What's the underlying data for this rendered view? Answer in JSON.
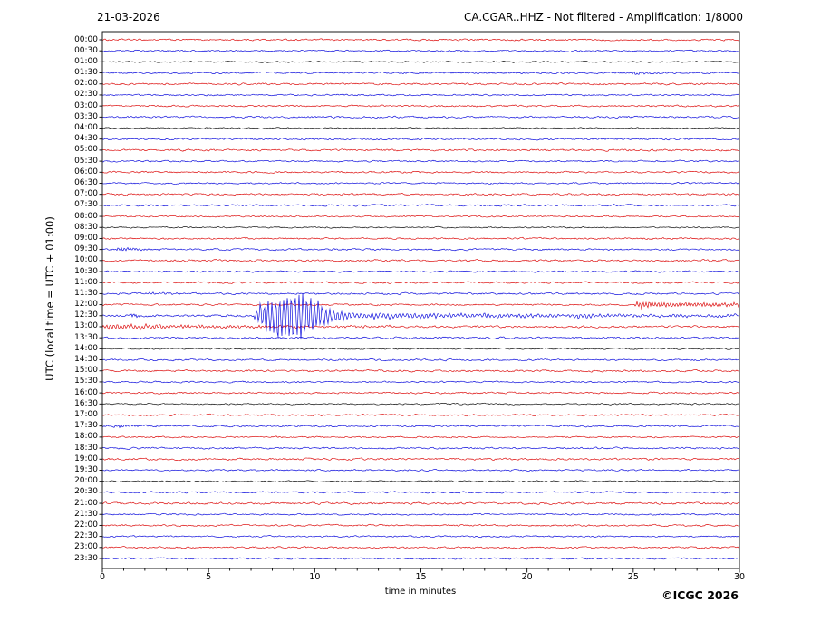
{
  "header": {
    "date": "21-03-2026",
    "station_title": "CA.CGAR..HHZ - Not filtered - Amplification: 1/8000"
  },
  "axes": {
    "y_label": "UTC (local time = UTC + 01:00)",
    "x_label": "time in minutes",
    "x_ticks": [
      0,
      5,
      10,
      15,
      20,
      25,
      30
    ],
    "x_minor_step": 1,
    "x_range": [
      0,
      30
    ]
  },
  "footer": {
    "copyright": "©ICGC 2026"
  },
  "colors": {
    "red": "#dd1111",
    "blue": "#1111dd",
    "black": "#111111"
  },
  "chart_data": {
    "type": "line",
    "subtype": "helicorder-seismogram",
    "title": "CA.CGAR..HHZ - Not filtered - Amplification: 1/8000",
    "date": "21-03-2026",
    "xlabel": "time in minutes",
    "ylabel": "UTC (local time = UTC + 01:00)",
    "x_range_minutes": [
      0,
      30
    ],
    "minutes_per_line": 30,
    "rows": [
      {
        "label": "00:00",
        "color": "red",
        "noise_amp": 1.0,
        "events": []
      },
      {
        "label": "00:30",
        "color": "blue",
        "noise_amp": 0.9,
        "events": []
      },
      {
        "label": "01:00",
        "color": "black",
        "noise_amp": 0.8,
        "events": []
      },
      {
        "label": "01:30",
        "color": "blue",
        "noise_amp": 1.0,
        "events": [
          {
            "start": 24.8,
            "peak_at": 25.0,
            "end": 27.0,
            "peak_amp": 2.2,
            "freq": 7,
            "decay": 0.7
          }
        ]
      },
      {
        "label": "02:00",
        "color": "red",
        "noise_amp": 1.1,
        "events": []
      },
      {
        "label": "02:30",
        "color": "blue",
        "noise_amp": 0.9,
        "events": []
      },
      {
        "label": "03:00",
        "color": "red",
        "noise_amp": 1.0,
        "events": []
      },
      {
        "label": "03:30",
        "color": "blue",
        "noise_amp": 1.1,
        "events": []
      },
      {
        "label": "04:00",
        "color": "black",
        "noise_amp": 0.8,
        "events": []
      },
      {
        "label": "04:30",
        "color": "blue",
        "noise_amp": 1.0,
        "events": []
      },
      {
        "label": "05:00",
        "color": "red",
        "noise_amp": 1.1,
        "events": []
      },
      {
        "label": "05:30",
        "color": "blue",
        "noise_amp": 0.9,
        "events": []
      },
      {
        "label": "06:00",
        "color": "red",
        "noise_amp": 1.0,
        "events": []
      },
      {
        "label": "06:30",
        "color": "blue",
        "noise_amp": 0.9,
        "events": []
      },
      {
        "label": "07:00",
        "color": "red",
        "noise_amp": 1.1,
        "events": []
      },
      {
        "label": "07:30",
        "color": "blue",
        "noise_amp": 1.0,
        "events": []
      },
      {
        "label": "08:00",
        "color": "red",
        "noise_amp": 0.9,
        "events": []
      },
      {
        "label": "08:30",
        "color": "black",
        "noise_amp": 0.8,
        "events": []
      },
      {
        "label": "09:00",
        "color": "red",
        "noise_amp": 1.0,
        "events": []
      },
      {
        "label": "09:30",
        "color": "blue",
        "noise_amp": 1.0,
        "events": [
          {
            "start": 0.55,
            "peak_at": 0.85,
            "end": 3.0,
            "peak_amp": 2.6,
            "freq": 7,
            "decay": 0.9
          }
        ]
      },
      {
        "label": "10:00",
        "color": "red",
        "noise_amp": 1.1,
        "events": []
      },
      {
        "label": "10:30",
        "color": "blue",
        "noise_amp": 0.9,
        "events": []
      },
      {
        "label": "11:00",
        "color": "red",
        "noise_amp": 1.0,
        "events": []
      },
      {
        "label": "11:30",
        "color": "blue",
        "noise_amp": 1.1,
        "events": [
          {
            "start": 2.0,
            "peak_at": 2.3,
            "end": 4.0,
            "peak_amp": 1.5,
            "freq": 6,
            "decay": 1.0
          }
        ]
      },
      {
        "label": "12:00",
        "color": "red",
        "noise_amp": 1.0,
        "events": [
          {
            "start": 25.05,
            "peak_at": 25.35,
            "end": 30,
            "peak_amp": 5.5,
            "freq": 7,
            "decay": 2.2,
            "floor_amp": 2.8,
            "floor_decay": 30
          }
        ]
      },
      {
        "label": "12:30",
        "color": "blue",
        "noise_amp": 1.3,
        "events": [
          {
            "start": 1.35,
            "peak_at": 1.5,
            "end": 2.1,
            "peak_amp": 3.5,
            "freq": 9,
            "decay": 0.18
          },
          {
            "start": 7.15,
            "peak_at": 9.3,
            "end": 30,
            "peak_amp": 41,
            "freq": 5.5,
            "decay": 1.1,
            "floor_amp": 5,
            "floor_decay": 12
          },
          {
            "start": 21.0,
            "peak_at": 21.6,
            "end": 24.5,
            "peak_amp": 3.2,
            "freq": 5,
            "decay": 1.3
          }
        ]
      },
      {
        "label": "13:00",
        "color": "red",
        "noise_amp": 1.2,
        "events": [
          {
            "start": 0,
            "peak_at": 0.05,
            "end": 14,
            "peak_amp": 3.0,
            "freq": 6,
            "decay": 9
          }
        ]
      },
      {
        "label": "13:30",
        "color": "blue",
        "noise_amp": 1.1,
        "events": []
      },
      {
        "label": "14:00",
        "color": "black",
        "noise_amp": 0.8,
        "events": []
      },
      {
        "label": "14:30",
        "color": "blue",
        "noise_amp": 1.0,
        "events": []
      },
      {
        "label": "15:00",
        "color": "red",
        "noise_amp": 1.1,
        "events": []
      },
      {
        "label": "15:30",
        "color": "blue",
        "noise_amp": 0.9,
        "events": []
      },
      {
        "label": "16:00",
        "color": "red",
        "noise_amp": 1.0,
        "events": []
      },
      {
        "label": "16:30",
        "color": "black",
        "noise_amp": 0.8,
        "events": []
      },
      {
        "label": "17:00",
        "color": "red",
        "noise_amp": 1.0,
        "events": []
      },
      {
        "label": "17:30",
        "color": "blue",
        "noise_amp": 1.0,
        "events": [
          {
            "start": 0.5,
            "peak_at": 0.8,
            "end": 3.2,
            "peak_amp": 2.0,
            "freq": 7,
            "decay": 1.0
          }
        ]
      },
      {
        "label": "18:00",
        "color": "red",
        "noise_amp": 0.9,
        "events": []
      },
      {
        "label": "18:30",
        "color": "blue",
        "noise_amp": 1.0,
        "events": []
      },
      {
        "label": "19:00",
        "color": "red",
        "noise_amp": 1.1,
        "events": []
      },
      {
        "label": "19:30",
        "color": "blue",
        "noise_amp": 0.9,
        "events": []
      },
      {
        "label": "20:00",
        "color": "black",
        "noise_amp": 0.8,
        "events": []
      },
      {
        "label": "20:30",
        "color": "blue",
        "noise_amp": 1.0,
        "events": []
      },
      {
        "label": "21:00",
        "color": "red",
        "noise_amp": 1.2,
        "events": []
      },
      {
        "label": "21:30",
        "color": "blue",
        "noise_amp": 0.9,
        "events": []
      },
      {
        "label": "22:00",
        "color": "red",
        "noise_amp": 1.0,
        "events": []
      },
      {
        "label": "22:30",
        "color": "blue",
        "noise_amp": 0.9,
        "events": []
      },
      {
        "label": "23:00",
        "color": "red",
        "noise_amp": 1.0,
        "events": []
      },
      {
        "label": "23:30",
        "color": "blue",
        "noise_amp": 0.9,
        "events": []
      }
    ]
  }
}
